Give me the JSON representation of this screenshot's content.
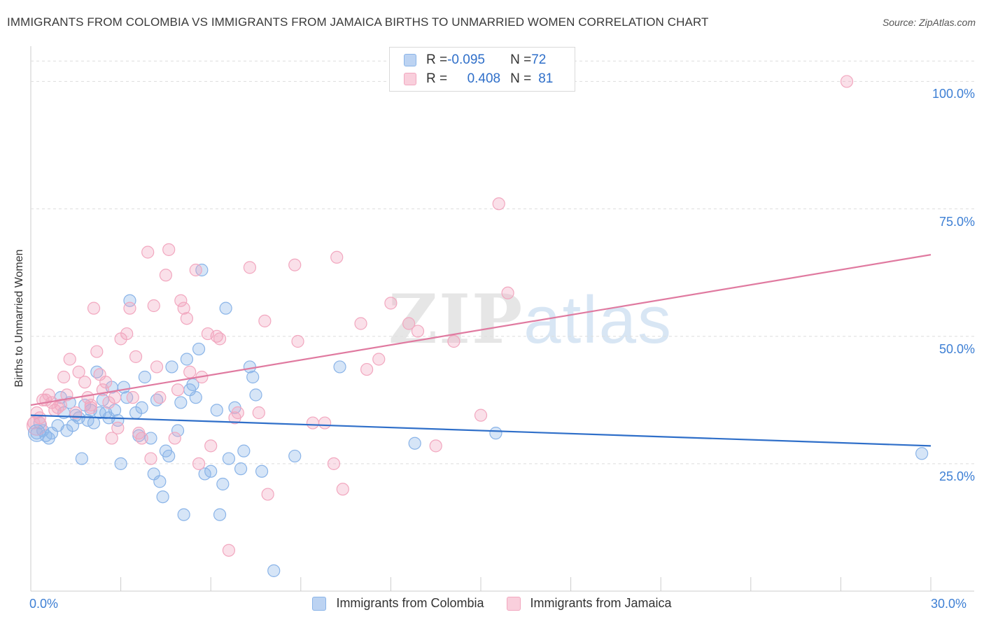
{
  "chart_data": {
    "type": "scatter",
    "title": "IMMIGRANTS FROM COLOMBIA VS IMMIGRANTS FROM JAMAICA BIRTHS TO UNMARRIED WOMEN CORRELATION CHART",
    "source": "Source: ZipAtlas.com",
    "ylabel": "Births to Unmarried Women",
    "xlabel": "",
    "xlim": [
      0,
      30
    ],
    "ylim": [
      0,
      105
    ],
    "x_tick_labels": {
      "min": "0.0%",
      "max": "30.0%"
    },
    "y_tick_labels": [
      {
        "value": 25,
        "label": "25.0%"
      },
      {
        "value": 50,
        "label": "50.0%"
      },
      {
        "value": 75,
        "label": "75.0%"
      },
      {
        "value": 100,
        "label": "100.0%"
      }
    ],
    "watermark": {
      "part1": "ZIP",
      "part2": "atlas"
    },
    "stats": [
      {
        "r_label": "R = ",
        "r_value": "-0.095",
        "n_label": "N = ",
        "n_value": "72"
      },
      {
        "r_label": "R = ",
        "r_value": "0.408",
        "n_label": "N = ",
        "n_value": "81"
      }
    ],
    "series": [
      {
        "name": "Immigrants from Colombia",
        "color": "#8ab4e8",
        "line_color": "#2f6fc9",
        "trend": {
          "x": [
            0,
            30
          ],
          "y": [
            34.5,
            28.5
          ]
        },
        "points": [
          [
            0.2,
            31
          ],
          [
            0.3,
            33
          ],
          [
            0.4,
            31.5
          ],
          [
            0.5,
            30.5
          ],
          [
            0.6,
            30
          ],
          [
            0.7,
            31
          ],
          [
            0.9,
            32.5
          ],
          [
            1.0,
            38
          ],
          [
            1.1,
            35
          ],
          [
            1.2,
            31.5
          ],
          [
            1.3,
            37
          ],
          [
            1.4,
            32.5
          ],
          [
            1.5,
            34.5
          ],
          [
            1.6,
            34
          ],
          [
            1.7,
            26
          ],
          [
            1.8,
            36.5
          ],
          [
            1.9,
            33.5
          ],
          [
            2.0,
            35.5
          ],
          [
            2.1,
            33
          ],
          [
            2.2,
            43
          ],
          [
            2.3,
            35
          ],
          [
            2.4,
            37.5
          ],
          [
            2.5,
            35
          ],
          [
            2.6,
            34
          ],
          [
            2.7,
            40
          ],
          [
            2.8,
            35.5
          ],
          [
            2.9,
            33.5
          ],
          [
            3.0,
            25
          ],
          [
            3.1,
            40
          ],
          [
            3.2,
            38
          ],
          [
            3.3,
            57
          ],
          [
            3.5,
            35
          ],
          [
            3.6,
            30.5
          ],
          [
            3.7,
            36
          ],
          [
            3.8,
            42
          ],
          [
            4.0,
            30
          ],
          [
            4.1,
            23
          ],
          [
            4.2,
            37.5
          ],
          [
            4.3,
            21.5
          ],
          [
            4.4,
            18.5
          ],
          [
            4.5,
            27.5
          ],
          [
            4.6,
            26.5
          ],
          [
            4.7,
            44
          ],
          [
            4.9,
            31.5
          ],
          [
            5.0,
            37
          ],
          [
            5.1,
            15
          ],
          [
            5.2,
            45.5
          ],
          [
            5.3,
            39.5
          ],
          [
            5.4,
            40.5
          ],
          [
            5.5,
            38
          ],
          [
            5.6,
            47.5
          ],
          [
            5.7,
            63
          ],
          [
            5.8,
            23
          ],
          [
            6.0,
            23.5
          ],
          [
            6.2,
            35.5
          ],
          [
            6.3,
            15
          ],
          [
            6.4,
            21
          ],
          [
            6.5,
            55.5
          ],
          [
            6.6,
            26
          ],
          [
            6.8,
            36
          ],
          [
            7.0,
            24
          ],
          [
            7.1,
            27.5
          ],
          [
            7.3,
            44
          ],
          [
            7.4,
            42
          ],
          [
            7.5,
            38.5
          ],
          [
            7.7,
            23.5
          ],
          [
            8.1,
            4
          ],
          [
            8.8,
            26.5
          ],
          [
            10.3,
            44
          ],
          [
            12.8,
            29
          ],
          [
            15.5,
            31
          ],
          [
            29.7,
            27
          ]
        ]
      },
      {
        "name": "Immigrants from Jamaica",
        "color": "#f2a7bf",
        "line_color": "#e07aa0",
        "trend": {
          "x": [
            0,
            30
          ],
          "y": [
            36.5,
            66
          ]
        },
        "points": [
          [
            0.1,
            33
          ],
          [
            0.2,
            35
          ],
          [
            0.3,
            34
          ],
          [
            0.4,
            37.5
          ],
          [
            0.6,
            38.5
          ],
          [
            0.7,
            37
          ],
          [
            0.8,
            35.5
          ],
          [
            0.9,
            36
          ],
          [
            1.0,
            36.5
          ],
          [
            1.1,
            42
          ],
          [
            1.3,
            45.5
          ],
          [
            1.5,
            35
          ],
          [
            1.6,
            43
          ],
          [
            1.8,
            41
          ],
          [
            1.9,
            38
          ],
          [
            2.0,
            36.5
          ],
          [
            2.1,
            55.5
          ],
          [
            2.2,
            47
          ],
          [
            2.3,
            42.5
          ],
          [
            2.4,
            39.5
          ],
          [
            2.5,
            41
          ],
          [
            2.6,
            37
          ],
          [
            2.7,
            30
          ],
          [
            2.8,
            38
          ],
          [
            2.9,
            32
          ],
          [
            3.0,
            49.5
          ],
          [
            3.2,
            50.5
          ],
          [
            3.3,
            55.5
          ],
          [
            3.5,
            46
          ],
          [
            3.6,
            31
          ],
          [
            3.7,
            30
          ],
          [
            3.9,
            66.5
          ],
          [
            4.0,
            26
          ],
          [
            4.1,
            56
          ],
          [
            4.2,
            44
          ],
          [
            4.3,
            38
          ],
          [
            4.5,
            62
          ],
          [
            4.6,
            67
          ],
          [
            4.8,
            30
          ],
          [
            5.0,
            57
          ],
          [
            5.1,
            55.5
          ],
          [
            5.2,
            53.5
          ],
          [
            5.3,
            43
          ],
          [
            5.5,
            63
          ],
          [
            5.6,
            25
          ],
          [
            5.7,
            42
          ],
          [
            5.9,
            50.5
          ],
          [
            6.0,
            28.5
          ],
          [
            6.2,
            50
          ],
          [
            6.3,
            49.5
          ],
          [
            6.6,
            8
          ],
          [
            6.8,
            34
          ],
          [
            6.9,
            35
          ],
          [
            7.3,
            63.5
          ],
          [
            7.6,
            35
          ],
          [
            7.9,
            19
          ],
          [
            8.8,
            64
          ],
          [
            8.9,
            49
          ],
          [
            9.8,
            33
          ],
          [
            10.2,
            65.5
          ],
          [
            10.4,
            20
          ],
          [
            11.0,
            52.5
          ],
          [
            11.2,
            43.5
          ],
          [
            11.6,
            45.5
          ],
          [
            12.0,
            56.5
          ],
          [
            12.6,
            52.5
          ],
          [
            12.9,
            51
          ],
          [
            13.5,
            28.5
          ],
          [
            14.1,
            49
          ],
          [
            15.0,
            34.5
          ],
          [
            15.6,
            76
          ],
          [
            15.9,
            58.5
          ],
          [
            27.2,
            100
          ],
          [
            10.1,
            25
          ],
          [
            9.4,
            33
          ],
          [
            7.8,
            53
          ],
          [
            4.9,
            39.5
          ],
          [
            3.4,
            38
          ],
          [
            2.0,
            36
          ],
          [
            1.2,
            38.5
          ],
          [
            0.5,
            37.5
          ]
        ]
      }
    ]
  }
}
